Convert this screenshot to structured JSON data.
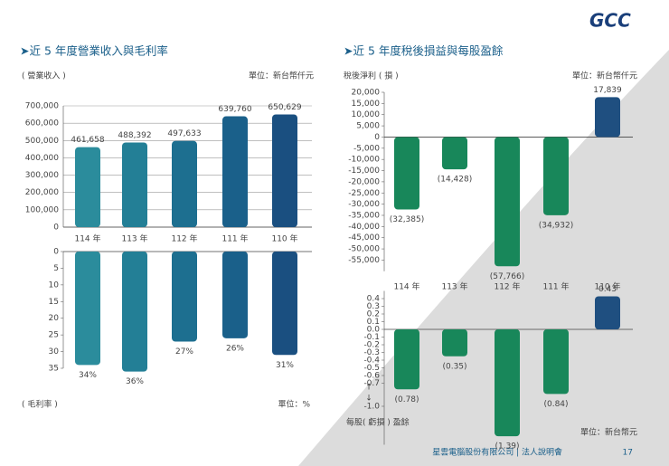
{
  "logo": "GCC",
  "footer": "星雲電腦股份有限公司 | 法人說明會",
  "page": "17",
  "chart_data": [
    {
      "type": "bar",
      "title": "➤近 5 年度營業收入與毛利率",
      "y_label": "( 營業收入 )",
      "unit": "單位：新台幣仟元",
      "categories": [
        "114 年",
        "113 年",
        "112 年",
        "111 年",
        "110 年"
      ],
      "values": [
        461658,
        488392,
        497633,
        639760,
        650629
      ],
      "value_labels": [
        "461,658",
        "488,392",
        "497,633",
        "639,760",
        "650,629"
      ],
      "colors": [
        "#2b8c9c",
        "#237f96",
        "#1d6f90",
        "#1a608a",
        "#1a4f80"
      ],
      "ylim": [
        0,
        700000
      ],
      "yticks": [
        {
          "value": 700000,
          "label": "700,000"
        },
        {
          "value": 600000,
          "label": "600,000"
        },
        {
          "value": 500000,
          "label": "500,000"
        },
        {
          "value": 400000,
          "label": "400,000"
        },
        {
          "value": 300000,
          "label": "300,000"
        },
        {
          "value": 200000,
          "label": "200,000"
        },
        {
          "value": 100000,
          "label": "100,000"
        },
        0
      ],
      "grid": true
    },
    {
      "type": "bar",
      "y_label": "( 毛利率 )",
      "unit": "單位：%",
      "values": [
        34,
        36,
        27,
        26,
        31
      ],
      "value_labels": [
        "34%",
        "36%",
        "27%",
        "26%",
        "31%"
      ],
      "colors": [
        "#2b8c9c",
        "#237f96",
        "#1d6f90",
        "#1a608a",
        "#1a4f80"
      ],
      "ylim": [
        0,
        35
      ],
      "y_inverted": true,
      "yticks": [
        0,
        5,
        10,
        15,
        20,
        25,
        30,
        35
      ],
      "grid": false
    },
    {
      "type": "bar",
      "title": "➤近 5 年度稅後損益與每股盈餘",
      "y_label": "稅後淨利 ( 損 )",
      "unit": "單位：新台幣仟元",
      "categories": [
        "114 年",
        "113 年",
        "112 年",
        "111 年",
        "110 年"
      ],
      "values": [
        -32385,
        -14428,
        -57766,
        -34932,
        17839
      ],
      "value_labels": [
        "(32,385)",
        "(14,428)",
        "(57,766)",
        "(34,932)",
        "17,839"
      ],
      "colors": [
        "#18875a",
        "#18875a",
        "#18875a",
        "#18875a",
        "#1f4f80"
      ],
      "ylim": [
        -60000,
        20000
      ],
      "yticks": [
        {
          "value": 20000,
          "label": "20,000"
        },
        {
          "value": 15000,
          "label": "15,000"
        },
        {
          "value": 10000,
          "label": "10,000"
        },
        {
          "value": 5000,
          "label": "5,000"
        },
        0,
        {
          "value": -5000,
          "label": "-5,000"
        },
        {
          "value": -10000,
          "label": "-10,000"
        },
        {
          "value": -15000,
          "label": "-15,000"
        },
        {
          "value": -20000,
          "label": "-20,000"
        },
        {
          "value": -25000,
          "label": "-25,000"
        },
        {
          "value": -30000,
          "label": "-30,000"
        },
        {
          "value": -35000,
          "label": "-35,000"
        },
        {
          "value": -40000,
          "label": "-40,000"
        },
        {
          "value": -45000,
          "label": "-45,000"
        },
        {
          "value": -50000,
          "label": "-50,000"
        },
        {
          "value": -55000,
          "label": "-55,000"
        }
      ],
      "grid": false
    },
    {
      "type": "bar",
      "y_label": "每股( 虧損 ) 盈餘",
      "unit": "單位：新台幣元",
      "values": [
        -0.78,
        -0.35,
        -1.39,
        -0.84,
        0.43
      ],
      "value_labels": [
        "(0.78)",
        "(0.35)",
        "(1.39)",
        "(0.84)",
        "0.43"
      ],
      "colors": [
        "#18875a",
        "#18875a",
        "#18875a",
        "#18875a",
        "#1f4f80"
      ],
      "ylim": [
        -1.5,
        0.5
      ],
      "yticks": [
        0.4,
        0.3,
        0.2,
        0.1,
        {
          "value": 0,
          "label": "0.0"
        },
        -0.1,
        -0.2,
        -0.3,
        -0.4,
        -0.5,
        -0.6,
        -0.7,
        {
          "value": -1,
          "label": "-1.0"
        }
      ],
      "grid": false
    }
  ]
}
